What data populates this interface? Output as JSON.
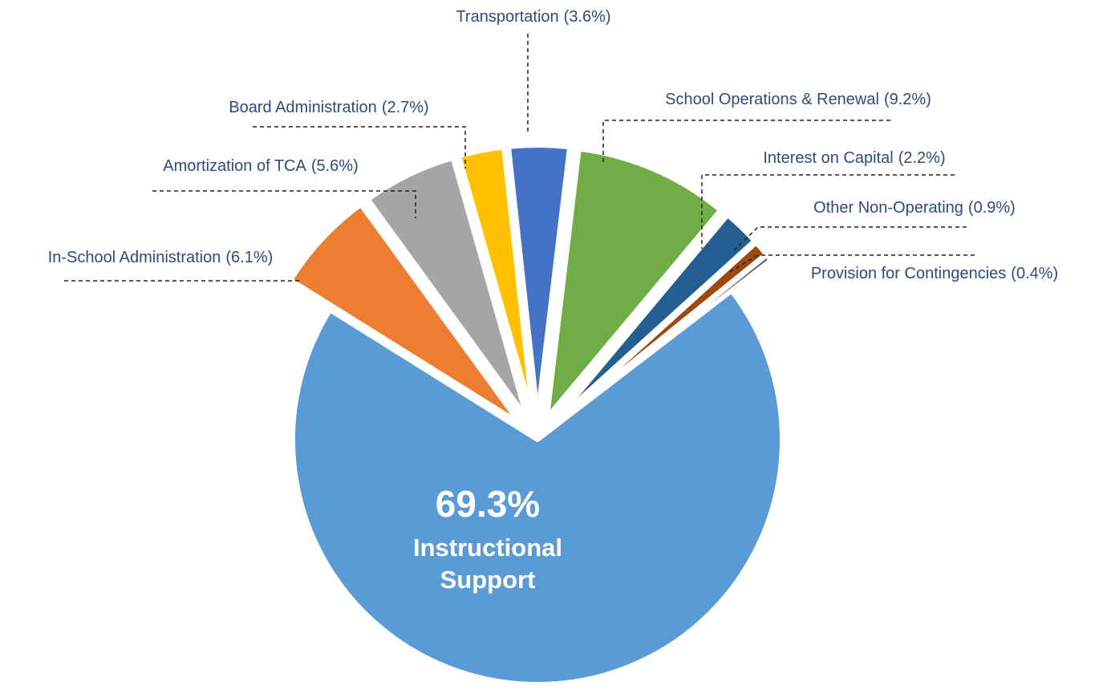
{
  "chart_data": {
    "type": "pie",
    "categories": [
      "In-School Administration",
      "Amortization of TCA",
      "Board Administration",
      "Transportation",
      "School Operations & Renewal",
      "Interest on Capital",
      "Other Non-Operating",
      "Provision for Contingencies",
      "Instructional Support"
    ],
    "values": [
      6.1,
      5.6,
      2.7,
      3.6,
      9.2,
      2.2,
      0.9,
      0.4,
      69.3
    ],
    "value_labels": [
      "(6.1%)",
      "(5.6%)",
      "(2.7%)",
      "(3.6%)",
      "(9.2%)",
      "(2.2%)",
      "(0.9%)",
      "(0.4%)",
      "69.3%"
    ],
    "colors": [
      "#ed7d31",
      "#a5a5a5",
      "#ffc000",
      "#4472c4",
      "#70ad47",
      "#255e91",
      "#9e480e",
      "#636363",
      "#5b9bd5"
    ]
  }
}
